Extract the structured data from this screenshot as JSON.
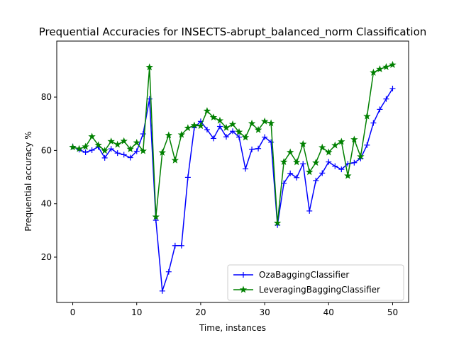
{
  "chart_data": {
    "type": "line",
    "title": "Prequential Accuracies for INSECTS-abrupt_balanced_norm Classification",
    "xlabel": "Time, instances",
    "ylabel": "Prequential accuracy %",
    "xlim": [
      -2.5,
      52.5
    ],
    "ylim": [
      3,
      101
    ],
    "xticks": [
      0,
      10,
      20,
      30,
      40,
      50
    ],
    "yticks": [
      20,
      40,
      60,
      80
    ],
    "grid": false,
    "legend_position": "lower-right",
    "x": [
      0,
      1,
      2,
      3,
      4,
      5,
      6,
      7,
      8,
      9,
      10,
      11,
      12,
      13,
      14,
      15,
      16,
      17,
      18,
      19,
      20,
      21,
      22,
      23,
      24,
      25,
      26,
      27,
      28,
      29,
      30,
      31,
      32,
      33,
      34,
      35,
      36,
      37,
      38,
      39,
      40,
      41,
      42,
      43,
      44,
      45,
      46,
      47,
      48,
      49,
      50
    ],
    "series": [
      {
        "name": "OzaBaggingClassifier",
        "color": "#0000ff",
        "marker": "plus",
        "values": [
          61.5,
          60.3,
          59.3,
          60.1,
          61.3,
          57.2,
          60.6,
          59.0,
          58.4,
          57.3,
          59.7,
          66.2,
          79.3,
          33.8,
          7.3,
          14.5,
          24.3,
          24.3,
          49.9,
          68.5,
          70.9,
          67.8,
          64.5,
          69.0,
          65.1,
          67.2,
          65.0,
          53.1,
          60.4,
          60.7,
          65.0,
          63.1,
          32.0,
          47.7,
          51.4,
          49.8,
          55.0,
          37.3,
          48.7,
          51.5,
          55.7,
          54.1,
          52.9,
          55.0,
          55.4,
          57.0,
          62.0,
          70.3,
          75.4,
          79.3,
          83.2
        ]
      },
      {
        "name": "LeveragingBaggingClassifier",
        "color": "#008000",
        "marker": "star",
        "values": [
          61.2,
          60.6,
          61.4,
          65.2,
          62.0,
          59.9,
          63.4,
          62.2,
          63.5,
          60.5,
          62.9,
          59.8,
          91.2,
          35.1,
          59.2,
          65.7,
          56.3,
          65.9,
          68.4,
          69.4,
          69.2,
          74.8,
          72.4,
          71.2,
          68.5,
          69.8,
          66.9,
          64.9,
          70.1,
          67.7,
          70.9,
          70.2,
          32.8,
          55.7,
          59.3,
          55.6,
          62.4,
          51.9,
          55.4,
          61.1,
          59.3,
          61.9,
          63.3,
          50.5,
          64.1,
          57.7,
          72.8,
          89.2,
          90.5,
          91.3,
          92.1
        ]
      }
    ]
  }
}
